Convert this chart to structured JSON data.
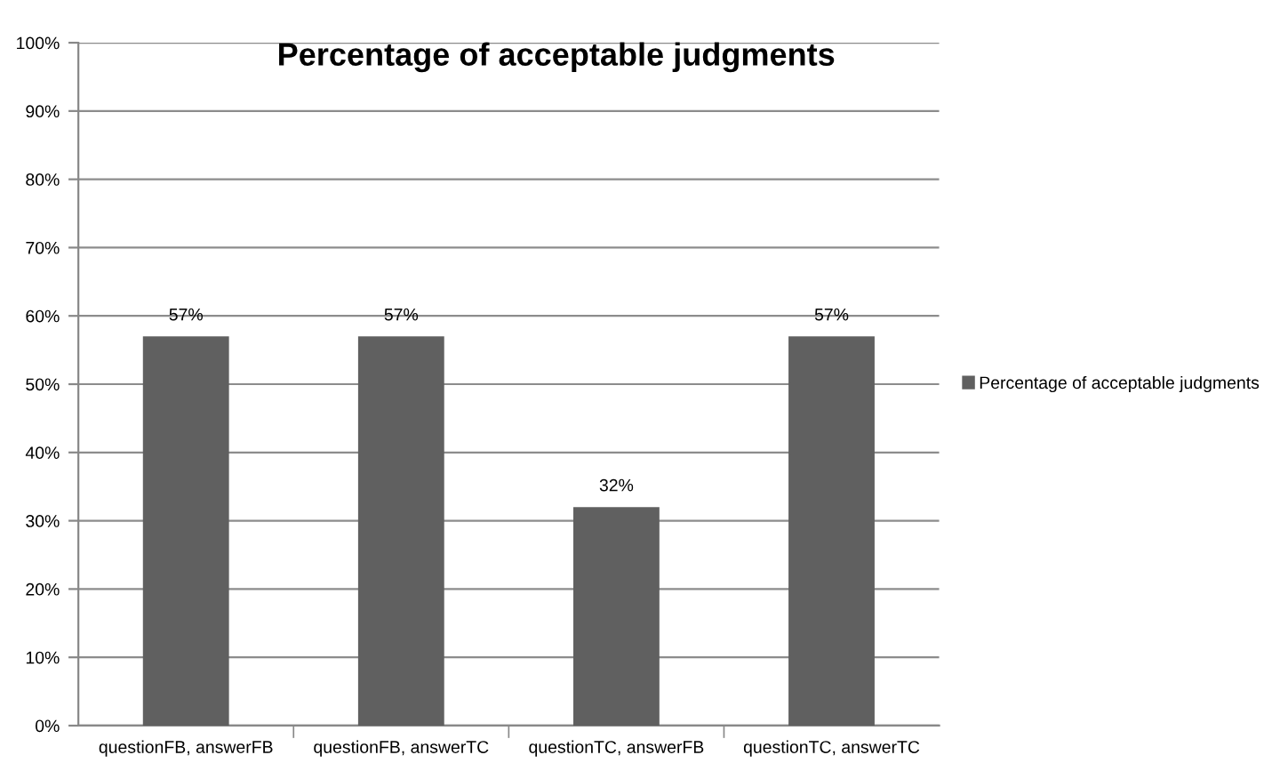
{
  "chart_data": {
    "type": "bar",
    "title": "Percentage of acceptable judgments",
    "categories": [
      "questionFB, answerFB",
      "questionFB, answerTC",
      "questionTC, answerFB",
      "questionTC, answerTC"
    ],
    "series": [
      {
        "name": "Percentage of acceptable judgments",
        "color": "#606060",
        "values": [
          57,
          57,
          32,
          57
        ],
        "value_labels": [
          "57%",
          "57%",
          "32%",
          "57%"
        ]
      }
    ],
    "ylim": [
      0,
      100
    ],
    "yticks": [
      {
        "value": 0,
        "label": "0%"
      },
      {
        "value": 10,
        "label": "10%"
      },
      {
        "value": 20,
        "label": "20%"
      },
      {
        "value": 30,
        "label": "30%"
      },
      {
        "value": 40,
        "label": "40%"
      },
      {
        "value": 50,
        "label": "50%"
      },
      {
        "value": 60,
        "label": "60%"
      },
      {
        "value": 70,
        "label": "70%"
      },
      {
        "value": 80,
        "label": "80%"
      },
      {
        "value": 90,
        "label": "90%"
      },
      {
        "value": 100,
        "label": "100%"
      }
    ],
    "grid": "y",
    "legend": "right"
  }
}
